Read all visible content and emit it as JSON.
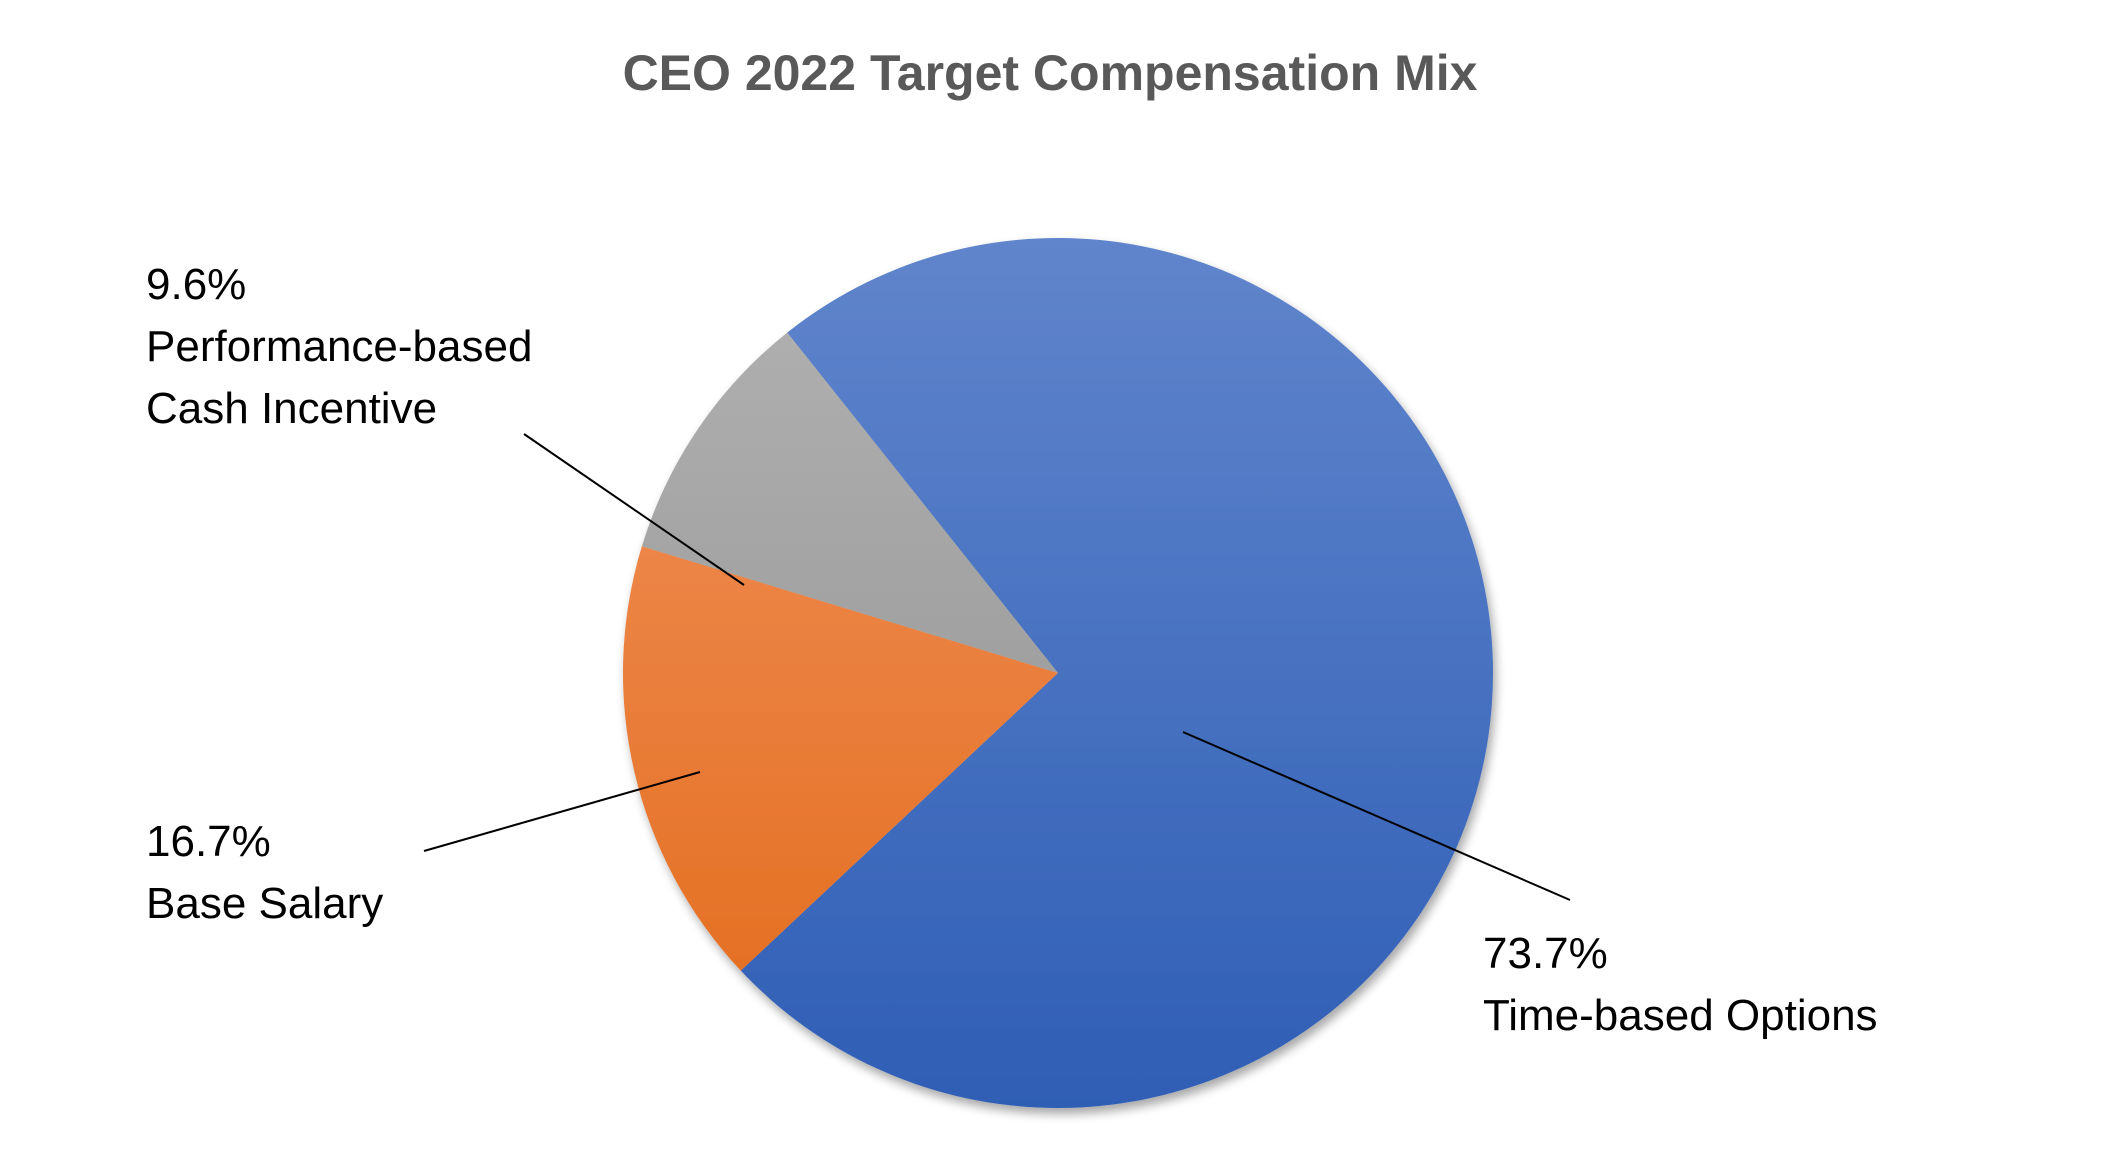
{
  "chart_data": {
    "type": "pie",
    "title": "CEO 2022 Target Compensation Mix",
    "legend": "none",
    "slices": [
      {
        "name": "Time-based Options",
        "value": 73.7,
        "label_value": "73.7%",
        "label_name": "Time-based Options",
        "color": "#4472C4",
        "color_light": "#6085CC",
        "color_dark": "#2F5EB5"
      },
      {
        "name": "Base Salary",
        "value": 16.7,
        "label_value": "16.7%",
        "label_name": "Base Salary",
        "color": "#ED7D31",
        "color_light": "#F29460",
        "color_dark": "#E26A19"
      },
      {
        "name": "Performance-based Cash Incentive",
        "value": 9.6,
        "label_value": "9.6%",
        "label_name_lines": [
          "Performance-based",
          "Cash Incentive"
        ],
        "color": "#A5A5A5",
        "color_light": "#B2B2B2",
        "color_dark": "#8E8E8E"
      }
    ]
  }
}
